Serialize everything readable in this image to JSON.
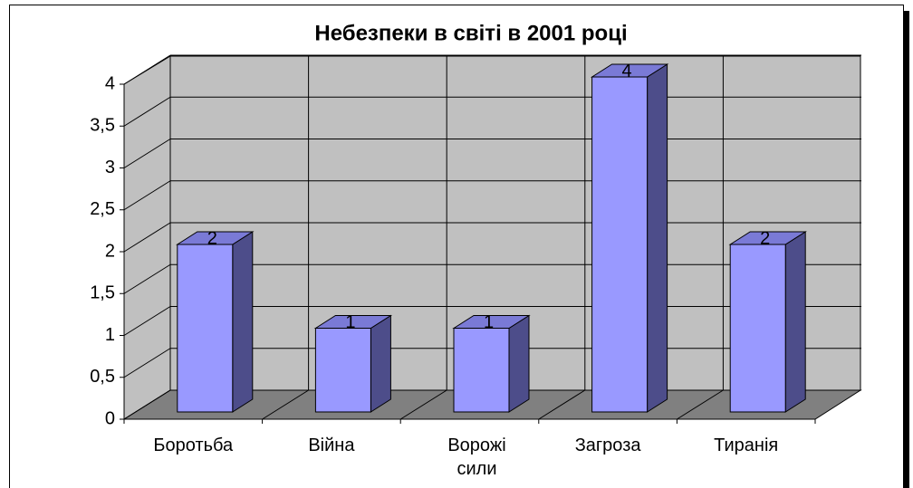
{
  "chart_data": {
    "type": "bar3d",
    "title": "Небезпеки в світі в 2001 році",
    "categories": [
      "Боротьба",
      "Війна",
      "Ворожі сили",
      "Загроза",
      "Тиранія"
    ],
    "values": [
      2,
      1,
      1,
      4,
      2
    ],
    "color": "#9999ff",
    "ylim": [
      0,
      4
    ],
    "yticks": [
      0,
      {
        "value": 0.5,
        "label": "0,5"
      },
      1,
      {
        "value": 1.5,
        "label": "1,5"
      },
      2,
      {
        "value": 2.5,
        "label": "2,5"
      },
      3,
      {
        "value": 3.5,
        "label": "3,5"
      },
      4
    ],
    "grid": true
  }
}
